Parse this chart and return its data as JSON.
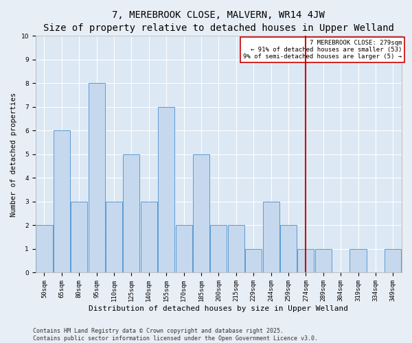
{
  "title": "7, MEREBROOK CLOSE, MALVERN, WR14 4JW",
  "subtitle": "Size of property relative to detached houses in Upper Welland",
  "xlabel": "Distribution of detached houses by size in Upper Welland",
  "ylabel": "Number of detached properties",
  "categories": [
    "50sqm",
    "65sqm",
    "80sqm",
    "95sqm",
    "110sqm",
    "125sqm",
    "140sqm",
    "155sqm",
    "170sqm",
    "185sqm",
    "200sqm",
    "215sqm",
    "229sqm",
    "244sqm",
    "259sqm",
    "274sqm",
    "289sqm",
    "304sqm",
    "319sqm",
    "334sqm",
    "349sqm"
  ],
  "values": [
    2,
    6,
    3,
    8,
    3,
    5,
    3,
    7,
    2,
    5,
    2,
    2,
    1,
    3,
    2,
    1,
    1,
    0,
    1,
    0,
    1
  ],
  "bar_color": "#c5d8ed",
  "bar_edge_color": "#5b9bd5",
  "red_line_index": 15,
  "red_line_label": "7 MEREBROOK CLOSE: 279sqm",
  "annotation_line1": "← 91% of detached houses are smaller (53)",
  "annotation_line2": "9% of semi-detached houses are larger (5) →",
  "annotation_box_color": "#ffffff",
  "annotation_border_color": "#cc0000",
  "red_line_color": "#cc0000",
  "ylim": [
    0,
    10
  ],
  "yticks": [
    0,
    1,
    2,
    3,
    4,
    5,
    6,
    7,
    8,
    9,
    10
  ],
  "background_color": "#e8eef5",
  "plot_bg_color": "#dce8f4",
  "footer_line1": "Contains HM Land Registry data © Crown copyright and database right 2025.",
  "footer_line2": "Contains public sector information licensed under the Open Government Licence v3.0.",
  "title_fontsize": 10,
  "subtitle_fontsize": 8.5,
  "xlabel_fontsize": 8,
  "ylabel_fontsize": 7.5,
  "tick_fontsize": 6.5,
  "footer_fontsize": 6,
  "annotation_fontsize": 6.5
}
